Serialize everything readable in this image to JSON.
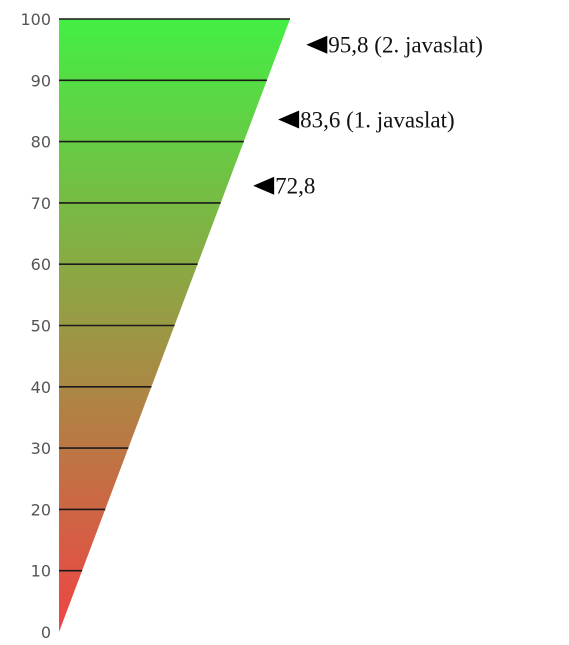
{
  "chart_data": {
    "type": "area",
    "x": [
      0,
      100
    ],
    "y": [
      0,
      100
    ],
    "ylim": [
      0,
      100
    ],
    "ticks": [
      "0",
      "10",
      "20",
      "30",
      "40",
      "50",
      "60",
      "70",
      "80",
      "90",
      "100"
    ],
    "gradient": {
      "bottom_color": "#ef4444",
      "top_color": "#44ee44"
    },
    "grid": "horizontal lines at each tick",
    "markers": [
      {
        "value": 95.8,
        "label": "95,8 (2. javaslat)"
      },
      {
        "value": 83.6,
        "label": "83,6 (1. javaslat)"
      },
      {
        "value": 72.8,
        "label": "72,8"
      }
    ]
  }
}
